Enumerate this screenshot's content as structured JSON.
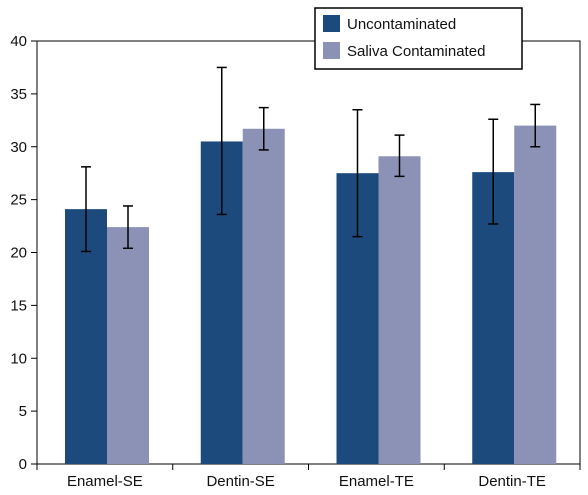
{
  "chart_data": {
    "type": "bar",
    "title": "",
    "xlabel": "",
    "ylabel": "",
    "ylim": [
      0,
      40
    ],
    "yticks": [
      0,
      5,
      10,
      15,
      20,
      25,
      30,
      35,
      40
    ],
    "categories": [
      "Enamel-SE",
      "Dentin-SE",
      "Enamel-TE",
      "Dentin-TE"
    ],
    "series": [
      {
        "name": "Uncontaminated",
        "color": "#1c4a7c",
        "values": [
          24.1,
          30.5,
          27.5,
          27.6
        ],
        "error_low": [
          20.1,
          23.6,
          21.5,
          22.7
        ],
        "error_high": [
          28.1,
          37.5,
          33.5,
          32.6
        ]
      },
      {
        "name": "Saliva Contaminated",
        "color": "#8b92b6",
        "values": [
          22.4,
          31.7,
          29.1,
          32.0
        ],
        "error_low": [
          20.4,
          29.7,
          27.2,
          30.0
        ],
        "error_high": [
          24.4,
          33.7,
          31.1,
          34.0
        ]
      }
    ],
    "legend": "top-right",
    "grid": false
  }
}
